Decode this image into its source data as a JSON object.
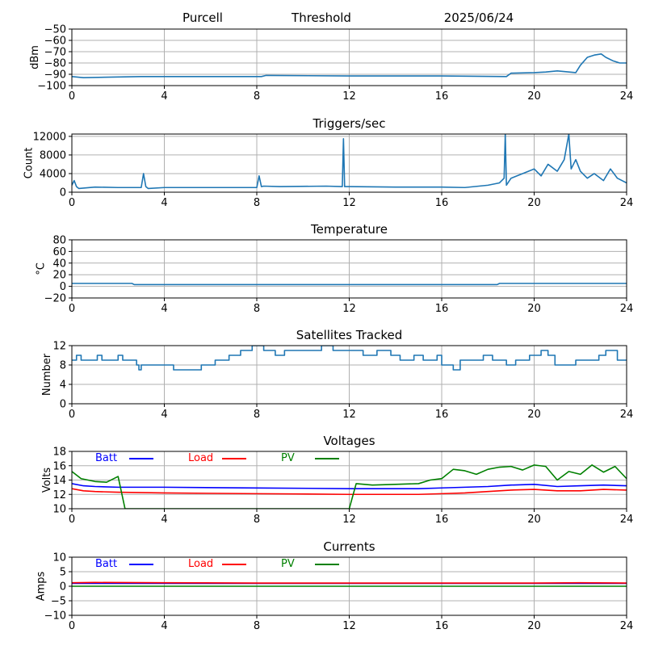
{
  "header": {
    "station": "Purcell",
    "mode": "Threshold",
    "date": "2025/06/24"
  },
  "colors": {
    "line": "#1f77b4",
    "batt": "#0000ff",
    "load": "#ff0000",
    "pv": "#008000",
    "grid": "#b0b0b0"
  },
  "chart_data": [
    {
      "id": "threshold",
      "type": "line",
      "title": "",
      "xlabel": "",
      "ylabel": "dBm",
      "xlim": [
        0,
        24
      ],
      "ylim": [
        -100,
        -50
      ],
      "xticks": [
        0,
        4,
        8,
        12,
        16,
        20,
        24
      ],
      "yticks": [
        -100,
        -90,
        -80,
        -70,
        -60,
        -50
      ],
      "grid": true,
      "series": [
        {
          "color": "#1f77b4",
          "x": [
            0,
            0.5,
            3,
            8.2,
            8.4,
            12,
            16,
            18.8,
            19,
            20,
            20.5,
            21,
            21.8,
            22,
            22.3,
            22.6,
            22.9,
            23.1,
            23.4,
            23.7,
            24
          ],
          "y": [
            -92,
            -93,
            -92,
            -92,
            -91,
            -91.5,
            -91.5,
            -92,
            -89,
            -88.5,
            -88,
            -87,
            -88.5,
            -82,
            -75,
            -73,
            -72,
            -75,
            -78,
            -80,
            -80
          ]
        }
      ]
    },
    {
      "id": "triggers",
      "type": "line",
      "title": "Triggers/sec",
      "xlabel": "",
      "ylabel": "Count",
      "xlim": [
        0,
        24
      ],
      "ylim": [
        0,
        12500
      ],
      "xticks": [
        0,
        4,
        8,
        12,
        16,
        20,
        24
      ],
      "yticks": [
        0,
        4000,
        8000,
        12000
      ],
      "grid": true,
      "series": [
        {
          "color": "#1f77b4",
          "x": [
            0,
            0.1,
            0.2,
            0.3,
            1,
            2,
            3,
            3.1,
            3.2,
            3.3,
            4,
            6,
            8,
            8.1,
            8.2,
            8.3,
            9,
            11,
            11.7,
            11.75,
            11.8,
            12,
            14,
            16,
            17,
            18,
            18.5,
            18.7,
            18.75,
            18.8,
            19,
            19.5,
            20,
            20.3,
            20.6,
            21,
            21.3,
            21.5,
            21.6,
            21.8,
            22,
            22.3,
            22.6,
            23,
            23.3,
            23.6,
            24
          ],
          "y": [
            1500,
            2500,
            1200,
            800,
            1100,
            1000,
            1000,
            4000,
            1200,
            800,
            1000,
            1000,
            1000,
            3500,
            1200,
            1300,
            1200,
            1300,
            1200,
            11500,
            1200,
            1200,
            1100,
            1100,
            1000,
            1500,
            2000,
            3000,
            12500,
            1500,
            3000,
            4000,
            5000,
            3500,
            6000,
            4500,
            7000,
            12500,
            5000,
            7000,
            4500,
            3000,
            4000,
            2500,
            5000,
            3000,
            2000
          ]
        }
      ]
    },
    {
      "id": "temperature",
      "type": "line",
      "title": "Temperature",
      "xlabel": "",
      "ylabel": "°C",
      "xlim": [
        0,
        24
      ],
      "ylim": [
        -20,
        80
      ],
      "xticks": [
        0,
        4,
        8,
        12,
        16,
        20,
        24
      ],
      "yticks": [
        -20,
        0,
        20,
        40,
        60,
        80
      ],
      "grid": true,
      "series": [
        {
          "color": "#1f77b4",
          "x": [
            0,
            2.6,
            2.7,
            18.4,
            18.5,
            24
          ],
          "y": [
            5,
            5,
            3,
            3,
            5,
            5
          ]
        }
      ]
    },
    {
      "id": "satellites",
      "type": "line",
      "step": true,
      "title": "Satellites Tracked",
      "xlabel": "",
      "ylabel": "Number",
      "xlim": [
        0,
        24
      ],
      "ylim": [
        0,
        12
      ],
      "xticks": [
        0,
        4,
        8,
        12,
        16,
        20,
        24
      ],
      "yticks": [
        0,
        4,
        8,
        12
      ],
      "grid": true,
      "series": [
        {
          "color": "#1f77b4",
          "x": [
            0,
            0.2,
            0.4,
            1.1,
            1.3,
            2,
            2.2,
            2.8,
            2.9,
            3,
            3.3,
            4.2,
            4.4,
            5.2,
            5.6,
            6.2,
            6.8,
            7.3,
            7.8,
            8.3,
            8.8,
            9.2,
            10,
            10.8,
            11.3,
            12,
            12.6,
            13.2,
            13.8,
            14.2,
            14.8,
            15.2,
            15.8,
            16,
            16.5,
            16.8,
            17.2,
            17.8,
            18.2,
            18.8,
            19.2,
            19.8,
            20.3,
            20.6,
            20.9,
            21.2,
            21.8,
            22.3,
            22.8,
            23.1,
            23.6,
            24
          ],
          "y": [
            9,
            10,
            9,
            10,
            9,
            10,
            9,
            8,
            7,
            8,
            8,
            8,
            7,
            7,
            8,
            9,
            10,
            11,
            12,
            11,
            10,
            11,
            11,
            12,
            11,
            11,
            10,
            11,
            10,
            9,
            10,
            9,
            10,
            8,
            7,
            9,
            9,
            10,
            9,
            8,
            9,
            10,
            11,
            10,
            8,
            8,
            9,
            9,
            10,
            11,
            9,
            9
          ]
        }
      ]
    },
    {
      "id": "voltages",
      "type": "line",
      "title": "Voltages",
      "xlabel": "",
      "ylabel": "Volts",
      "xlim": [
        0,
        24
      ],
      "ylim": [
        10,
        18
      ],
      "xticks": [
        0,
        4,
        8,
        12,
        16,
        20,
        24
      ],
      "yticks": [
        10,
        12,
        14,
        16,
        18
      ],
      "grid": true,
      "legend": "top-left",
      "series": [
        {
          "name": "Batt",
          "color": "#0000ff",
          "x": [
            0,
            0.5,
            1,
            2,
            4,
            8,
            12,
            15,
            16,
            17,
            18,
            19,
            20,
            21,
            22,
            23,
            24
          ],
          "y": [
            13.5,
            13.2,
            13.1,
            13.0,
            13.0,
            12.9,
            12.8,
            12.8,
            12.9,
            13.0,
            13.1,
            13.3,
            13.4,
            13.1,
            13.2,
            13.3,
            13.2
          ]
        },
        {
          "name": "Load",
          "color": "#ff0000",
          "x": [
            0,
            0.5,
            1,
            2,
            4,
            8,
            12,
            15,
            16,
            17,
            18,
            19,
            20,
            21,
            22,
            23,
            24
          ],
          "y": [
            12.8,
            12.5,
            12.4,
            12.3,
            12.2,
            12.1,
            12.0,
            12.0,
            12.1,
            12.2,
            12.4,
            12.6,
            12.7,
            12.5,
            12.5,
            12.7,
            12.6
          ]
        },
        {
          "name": "PV",
          "color": "#008000",
          "x": [
            0,
            0.4,
            1,
            1.5,
            2,
            2.3,
            12,
            12.3,
            13,
            14,
            15,
            15.5,
            16,
            16.5,
            17,
            17.5,
            18,
            18.5,
            19,
            19.5,
            20,
            20.5,
            21,
            21.5,
            22,
            22.5,
            23,
            23.5,
            24
          ],
          "y": [
            15.2,
            14.2,
            13.8,
            13.7,
            14.5,
            10.0,
            10.0,
            13.5,
            13.3,
            13.4,
            13.5,
            14.0,
            14.2,
            15.5,
            15.3,
            14.8,
            15.5,
            15.8,
            15.9,
            15.4,
            16.1,
            15.9,
            14.0,
            15.2,
            14.8,
            16.1,
            15.1,
            15.9,
            14.2
          ]
        }
      ]
    },
    {
      "id": "currents",
      "type": "line",
      "title": "Currents",
      "xlabel": "",
      "ylabel": "Amps",
      "xlim": [
        0,
        24
      ],
      "ylim": [
        -10,
        10
      ],
      "xticks": [
        0,
        4,
        8,
        12,
        16,
        20,
        24
      ],
      "yticks": [
        -10,
        -5,
        0,
        5,
        10
      ],
      "grid": true,
      "legend": "top-left",
      "series": [
        {
          "name": "Batt",
          "color": "#0000ff",
          "x": [
            0,
            24
          ],
          "y": [
            1.0,
            1.0
          ]
        },
        {
          "name": "Load",
          "color": "#ff0000",
          "x": [
            0,
            1,
            4,
            8,
            12,
            16,
            20,
            22,
            24
          ],
          "y": [
            1.2,
            1.3,
            1.2,
            1.1,
            1.1,
            1.1,
            1.1,
            1.2,
            1.1
          ]
        },
        {
          "name": "PV",
          "color": "#008000",
          "x": [
            0,
            24
          ],
          "y": [
            0.0,
            0.0
          ]
        }
      ]
    }
  ]
}
